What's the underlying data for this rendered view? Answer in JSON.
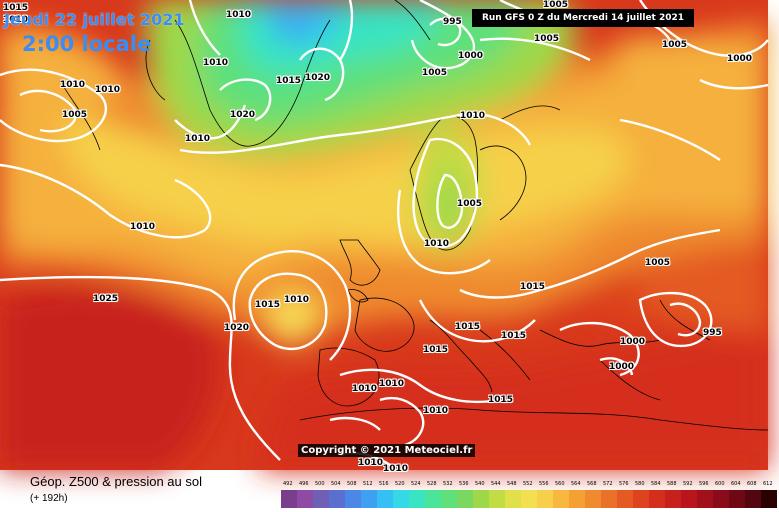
{
  "header": {
    "valid_date": "Jeudi 22 juillet 2021",
    "local_time": "2:00 locale",
    "run_info": "Run GFS 0 Z du Mercredi 14 juillet 2021"
  },
  "credit": "Copyright © 2021 Meteociel.fr",
  "footer": {
    "title": "Géop. Z500 & pression au sol",
    "forecast_hour": "(+ 192h)"
  },
  "legend": {
    "unit_note": "geopotential height 500 hPa (dam)",
    "values": [
      "492",
      "496",
      "500",
      "504",
      "508",
      "512",
      "516",
      "520",
      "524",
      "528",
      "532",
      "536",
      "540",
      "544",
      "548",
      "552",
      "556",
      "560",
      "564",
      "568",
      "572",
      "576",
      "580",
      "584",
      "588",
      "592",
      "596",
      "600",
      "604",
      "608",
      "612"
    ],
    "colors": [
      "#7a3f8c",
      "#8f4aa6",
      "#6f5fb5",
      "#5a6fd0",
      "#4c86e6",
      "#3fa0f2",
      "#36bff4",
      "#35d8e6",
      "#38e4c2",
      "#4ae59a",
      "#5fe07a",
      "#7ad860",
      "#9ed84a",
      "#c2dc45",
      "#e0e04a",
      "#f2e050",
      "#f8cf4a",
      "#f8b840",
      "#f5a035",
      "#f08a2e",
      "#ea7228",
      "#e45a22",
      "#dd431e",
      "#d52e1c",
      "#c8201c",
      "#b8161c",
      "#a2101c",
      "#8a0c1a",
      "#6e0814",
      "#520610",
      "#2a0000"
    ]
  },
  "isobars": [
    {
      "text": "1015",
      "pos": "top-left"
    },
    {
      "text": "1010",
      "pos": "top-left-2"
    },
    {
      "text": "1010",
      "pos": "greenland-top"
    },
    {
      "text": "1010",
      "pos": "greenland-w"
    },
    {
      "text": "1010",
      "pos": "canada-w"
    },
    {
      "text": "1010",
      "pos": "canada-e"
    },
    {
      "text": "1005",
      "pos": "canada-low"
    },
    {
      "text": "1010",
      "pos": "atlantic-w"
    },
    {
      "text": "1025",
      "pos": "azores"
    },
    {
      "text": "1015",
      "pos": "greenland-c"
    },
    {
      "text": "1020",
      "pos": "greenland-c2"
    },
    {
      "text": "1020",
      "pos": "greenland-s"
    },
    {
      "text": "1010",
      "pos": "greenland-s2"
    },
    {
      "text": "995",
      "pos": "arctic-low"
    },
    {
      "text": "1000",
      "pos": "arctic-low-2"
    },
    {
      "text": "1005",
      "pos": "arctic-1"
    },
    {
      "text": "1005",
      "pos": "arctic-2"
    },
    {
      "text": "1005",
      "pos": "siberia-1"
    },
    {
      "text": "1005",
      "pos": "siberia-2"
    },
    {
      "text": "1000",
      "pos": "siberia-3"
    },
    {
      "text": "1010",
      "pos": "norway"
    },
    {
      "text": "1005",
      "pos": "sweden"
    },
    {
      "text": "1010",
      "pos": "baltic"
    },
    {
      "text": "1015",
      "pos": "biscay-1"
    },
    {
      "text": "1010",
      "pos": "biscay-2"
    },
    {
      "text": "1020",
      "pos": "atlantic-e"
    },
    {
      "text": "1015",
      "pos": "alps"
    },
    {
      "text": "1015",
      "pos": "poland"
    },
    {
      "text": "1015",
      "pos": "balkans"
    },
    {
      "text": "1015",
      "pos": "italy"
    },
    {
      "text": "1015",
      "pos": "greece"
    },
    {
      "text": "1005",
      "pos": "russia"
    },
    {
      "text": "995",
      "pos": "caspian"
    },
    {
      "text": "1000",
      "pos": "turkey-1"
    },
    {
      "text": "1000",
      "pos": "turkey-2"
    },
    {
      "text": "1010",
      "pos": "iberia-1"
    },
    {
      "text": "1010",
      "pos": "iberia-2"
    },
    {
      "text": "1010",
      "pos": "algeria"
    },
    {
      "text": "1010",
      "pos": "sahara-1"
    },
    {
      "text": "1010",
      "pos": "sahara-2"
    }
  ]
}
